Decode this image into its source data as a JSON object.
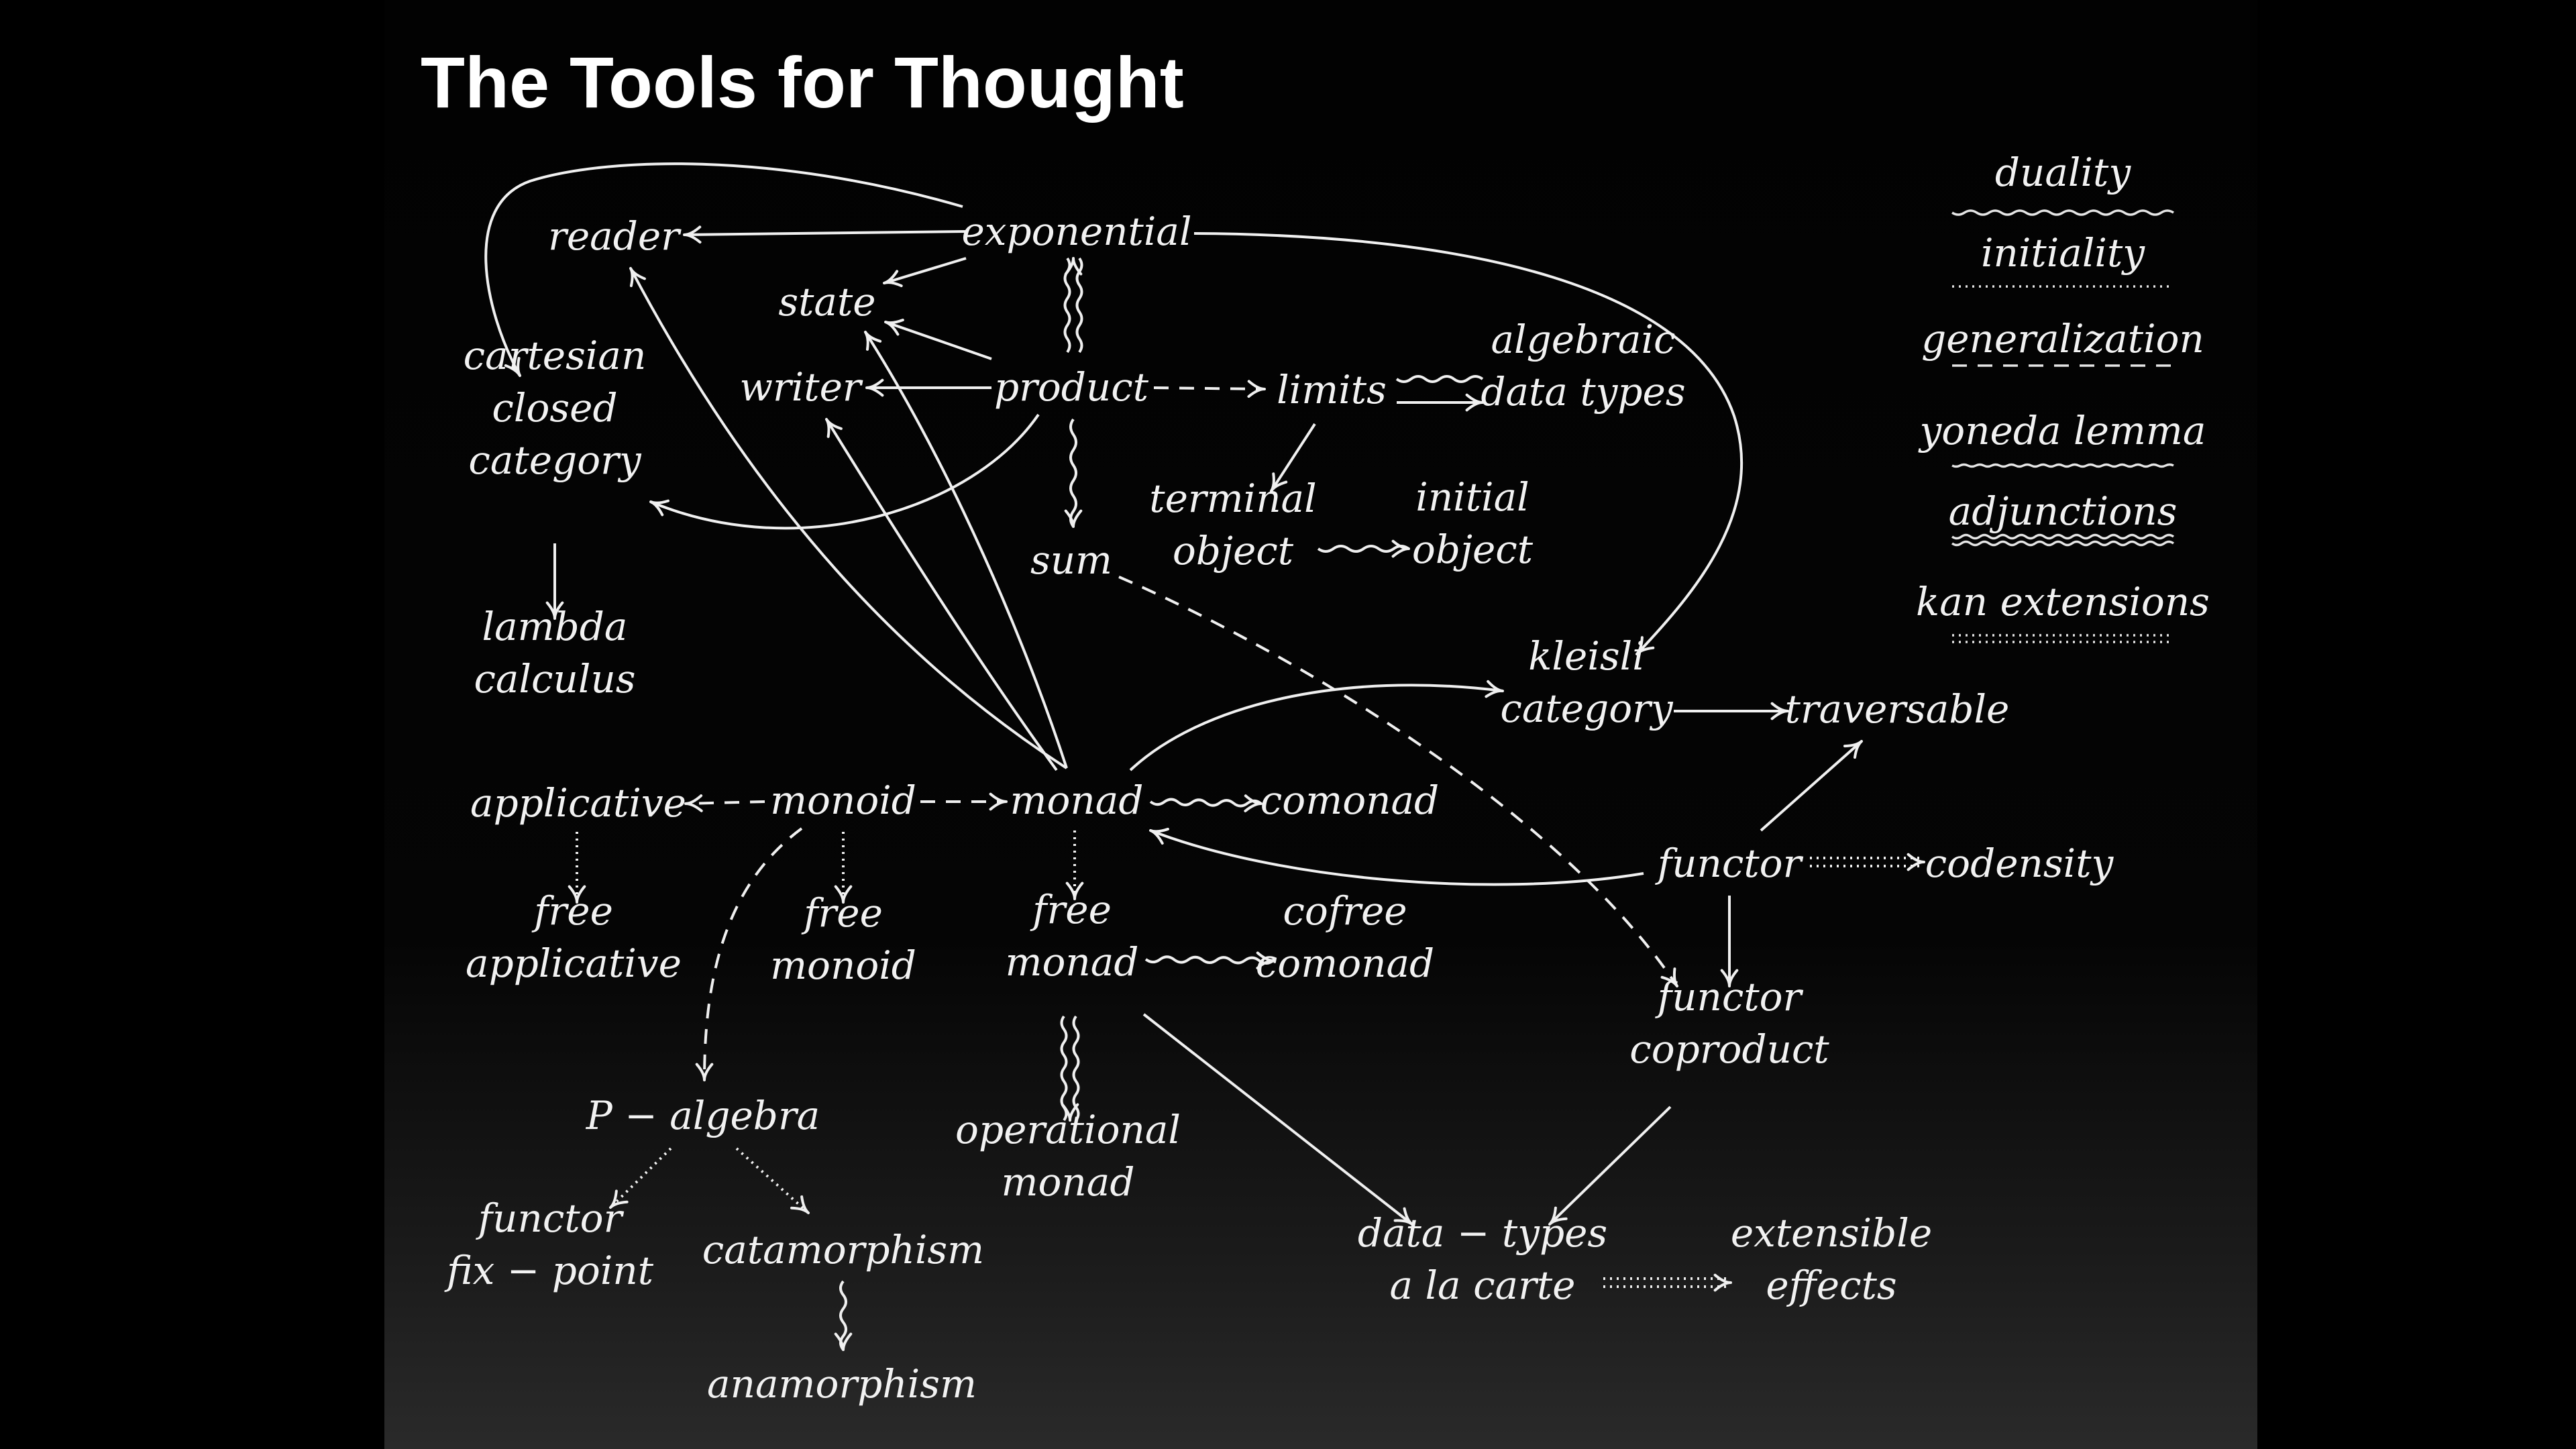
{
  "title": "The Tools for Thought",
  "nodes": {
    "reader": [
      "reader"
    ],
    "exponential": [
      "exponential"
    ],
    "state": [
      "state"
    ],
    "writer": [
      "writer"
    ],
    "product": [
      "product"
    ],
    "limits": [
      "limits"
    ],
    "algebraic": [
      "algebraic",
      "data types"
    ],
    "cartesian": [
      "cartesian",
      "closed",
      "category"
    ],
    "terminal": [
      "terminal",
      "object"
    ],
    "initial": [
      "initial",
      "object"
    ],
    "sum": [
      "sum"
    ],
    "lambda": [
      "lambda",
      "calculus"
    ],
    "kleisli": [
      "kleisli",
      "category"
    ],
    "traversable": [
      "traversable"
    ],
    "applicative": [
      "applicative"
    ],
    "monoid": [
      "monoid"
    ],
    "monad": [
      "monad"
    ],
    "comonad": [
      "comonad"
    ],
    "functor": [
      "functor"
    ],
    "codensity": [
      "codensity"
    ],
    "free_applicative": [
      "free",
      "applicative"
    ],
    "free_monoid": [
      "free",
      "monoid"
    ],
    "free_monad": [
      "free",
      "monad"
    ],
    "cofree_comonad": [
      "cofree",
      "comonad"
    ],
    "functor_coproduct": [
      "functor",
      "coproduct"
    ],
    "p_algebra": [
      "P − algebra"
    ],
    "operational": [
      "operational",
      "monad"
    ],
    "functor_fixpoint": [
      "functor",
      "fix − point"
    ],
    "catamorphism": [
      "catamorphism"
    ],
    "anamorphism": [
      "anamorphism"
    ],
    "data_types": [
      "data − types",
      "a la carte"
    ],
    "extensible": [
      "extensible",
      "effects"
    ]
  },
  "legend": [
    {
      "label": "duality",
      "style": "wavy"
    },
    {
      "label": "initiality",
      "style": "dotted"
    },
    {
      "label": "generalization",
      "style": "dashed"
    },
    {
      "label": "yoneda lemma",
      "style": "small-wavy"
    },
    {
      "label": "adjunctions",
      "style": "double-wavy"
    },
    {
      "label": "kan extensions",
      "style": "double-dotted"
    }
  ],
  "edges": [
    {
      "from": "exponential",
      "to": "reader",
      "style": "solid"
    },
    {
      "from": "exponential",
      "to": "state",
      "style": "solid"
    },
    {
      "from": "exponential",
      "to": "cartesian",
      "style": "solid"
    },
    {
      "from": "exponential",
      "to": "kleisli",
      "style": "solid"
    },
    {
      "from": "product",
      "to": "exponential",
      "style": "double-wavy"
    },
    {
      "from": "product",
      "to": "state",
      "style": "solid"
    },
    {
      "from": "product",
      "to": "writer",
      "style": "solid"
    },
    {
      "from": "product",
      "to": "limits",
      "style": "dashed"
    },
    {
      "from": "product",
      "to": "cartesian",
      "style": "solid"
    },
    {
      "from": "product",
      "to": "sum",
      "style": "wavy"
    },
    {
      "from": "limits",
      "to": "algebraic",
      "style": "solid"
    },
    {
      "from": "limits",
      "to": "algebraic",
      "style": "wavy"
    },
    {
      "from": "limits",
      "to": "terminal",
      "style": "solid"
    },
    {
      "from": "terminal",
      "to": "initial",
      "style": "wavy"
    },
    {
      "from": "cartesian",
      "to": "lambda",
      "style": "solid"
    },
    {
      "from": "sum",
      "to": "functor_coproduct",
      "style": "dashed"
    },
    {
      "from": "monad",
      "to": "reader",
      "style": "solid"
    },
    {
      "from": "monad",
      "to": "state",
      "style": "solid"
    },
    {
      "from": "monad",
      "to": "writer",
      "style": "solid"
    },
    {
      "from": "monad",
      "to": "kleisli",
      "style": "solid"
    },
    {
      "from": "monad",
      "to": "comonad",
      "style": "wavy"
    },
    {
      "from": "monad",
      "to": "free_monad",
      "style": "dotted"
    },
    {
      "from": "monoid",
      "to": "applicative",
      "style": "dashed"
    },
    {
      "from": "monoid",
      "to": "monad",
      "style": "dashed"
    },
    {
      "from": "monoid",
      "to": "free_monoid",
      "style": "dotted"
    },
    {
      "from": "monoid",
      "to": "p_algebra",
      "style": "dashed"
    },
    {
      "from": "applicative",
      "to": "free_applicative",
      "style": "dotted"
    },
    {
      "from": "kleisli",
      "to": "traversable",
      "style": "solid"
    },
    {
      "from": "functor",
      "to": "traversable",
      "style": "solid"
    },
    {
      "from": "functor",
      "to": "monad",
      "style": "solid"
    },
    {
      "from": "functor",
      "to": "codensity",
      "style": "double-dotted"
    },
    {
      "from": "functor",
      "to": "functor_coproduct",
      "style": "solid"
    },
    {
      "from": "free_monad",
      "to": "cofree_comonad",
      "style": "wavy"
    },
    {
      "from": "free_monad",
      "to": "operational",
      "style": "double-wavy"
    },
    {
      "from": "free_monad",
      "to": "data_types",
      "style": "solid"
    },
    {
      "from": "functor_coproduct",
      "to": "data_types",
      "style": "solid"
    },
    {
      "from": "data_types",
      "to": "extensible",
      "style": "double-dotted"
    },
    {
      "from": "p_algebra",
      "to": "functor_fixpoint",
      "style": "dotted"
    },
    {
      "from": "p_algebra",
      "to": "catamorphism",
      "style": "dotted"
    },
    {
      "from": "catamorphism",
      "to": "anamorphism",
      "style": "wavy"
    }
  ]
}
